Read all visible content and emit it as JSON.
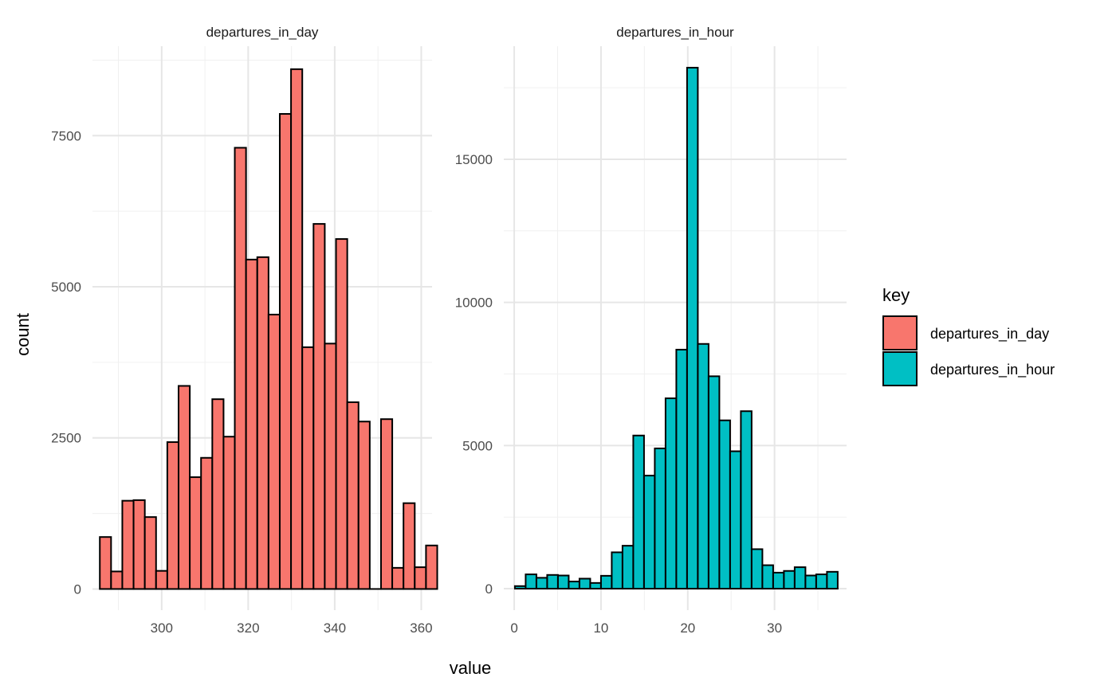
{
  "chart_data": {
    "type": "bar",
    "subtype": "histogram-facets",
    "xlabel": "value",
    "ylabel": "count",
    "grid": true,
    "legend": {
      "title": "key",
      "position": "right",
      "entries": [
        {
          "label": "departures_in_day",
          "color": "#F8766D"
        },
        {
          "label": "departures_in_hour",
          "color": "#00BFC4"
        }
      ]
    },
    "panels": [
      {
        "title": "departures_in_day",
        "color": "#F8766D",
        "xlim": [
          284,
          362.5
        ],
        "ylim": [
          -350,
          8980
        ],
        "xticks": [
          300,
          320,
          340,
          360
        ],
        "yticks": [
          0,
          2500,
          5000,
          7500
        ],
        "bin_width": 2.6,
        "bins": [
          {
            "x": 287.0,
            "y": 860
          },
          {
            "x": 289.6,
            "y": 290
          },
          {
            "x": 292.2,
            "y": 1460
          },
          {
            "x": 294.8,
            "y": 1470
          },
          {
            "x": 297.4,
            "y": 1190
          },
          {
            "x": 300.0,
            "y": 300
          },
          {
            "x": 302.6,
            "y": 2430
          },
          {
            "x": 305.2,
            "y": 3360
          },
          {
            "x": 307.8,
            "y": 1850
          },
          {
            "x": 310.4,
            "y": 2170
          },
          {
            "x": 313.0,
            "y": 3140
          },
          {
            "x": 315.6,
            "y": 2520
          },
          {
            "x": 318.2,
            "y": 7300
          },
          {
            "x": 320.8,
            "y": 5450
          },
          {
            "x": 323.4,
            "y": 5490
          },
          {
            "x": 326.0,
            "y": 4540
          },
          {
            "x": 328.6,
            "y": 7860
          },
          {
            "x": 331.2,
            "y": 8600
          },
          {
            "x": 333.8,
            "y": 4000
          },
          {
            "x": 336.4,
            "y": 6040
          },
          {
            "x": 339.0,
            "y": 4060
          },
          {
            "x": 341.6,
            "y": 5790
          },
          {
            "x": 344.2,
            "y": 3090
          },
          {
            "x": 346.8,
            "y": 2770
          },
          {
            "x": 349.4,
            "y": 0
          },
          {
            "x": 352.0,
            "y": 2810
          },
          {
            "x": 354.6,
            "y": 350
          },
          {
            "x": 357.2,
            "y": 1420
          },
          {
            "x": 359.8,
            "y": 360
          },
          {
            "x": 362.4,
            "y": 720
          }
        ]
      },
      {
        "title": "departures_in_hour",
        "color": "#00BFC4",
        "xlim": [
          -1.2,
          38.3
        ],
        "ylim": [
          -750,
          18950
        ],
        "xticks": [
          0,
          10,
          20,
          30
        ],
        "yticks": [
          0,
          5000,
          10000,
          15000
        ],
        "bin_width": 1.24,
        "bins": [
          {
            "x": 0.7,
            "y": 90
          },
          {
            "x": 1.94,
            "y": 500
          },
          {
            "x": 3.18,
            "y": 380
          },
          {
            "x": 4.42,
            "y": 480
          },
          {
            "x": 5.66,
            "y": 460
          },
          {
            "x": 6.9,
            "y": 250
          },
          {
            "x": 8.14,
            "y": 350
          },
          {
            "x": 9.38,
            "y": 200
          },
          {
            "x": 10.62,
            "y": 450
          },
          {
            "x": 11.86,
            "y": 1270
          },
          {
            "x": 13.1,
            "y": 1500
          },
          {
            "x": 14.34,
            "y": 5350
          },
          {
            "x": 15.58,
            "y": 3950
          },
          {
            "x": 16.82,
            "y": 4900
          },
          {
            "x": 18.06,
            "y": 6650
          },
          {
            "x": 19.3,
            "y": 8350
          },
          {
            "x": 20.54,
            "y": 18200
          },
          {
            "x": 21.78,
            "y": 8550
          },
          {
            "x": 23.02,
            "y": 7420
          },
          {
            "x": 24.26,
            "y": 5880
          },
          {
            "x": 25.5,
            "y": 4800
          },
          {
            "x": 26.74,
            "y": 6200
          },
          {
            "x": 27.98,
            "y": 1380
          },
          {
            "x": 29.22,
            "y": 820
          },
          {
            "x": 30.46,
            "y": 560
          },
          {
            "x": 31.7,
            "y": 620
          },
          {
            "x": 32.94,
            "y": 750
          },
          {
            "x": 34.18,
            "y": 460
          },
          {
            "x": 35.42,
            "y": 500
          },
          {
            "x": 36.66,
            "y": 590
          }
        ]
      }
    ]
  }
}
